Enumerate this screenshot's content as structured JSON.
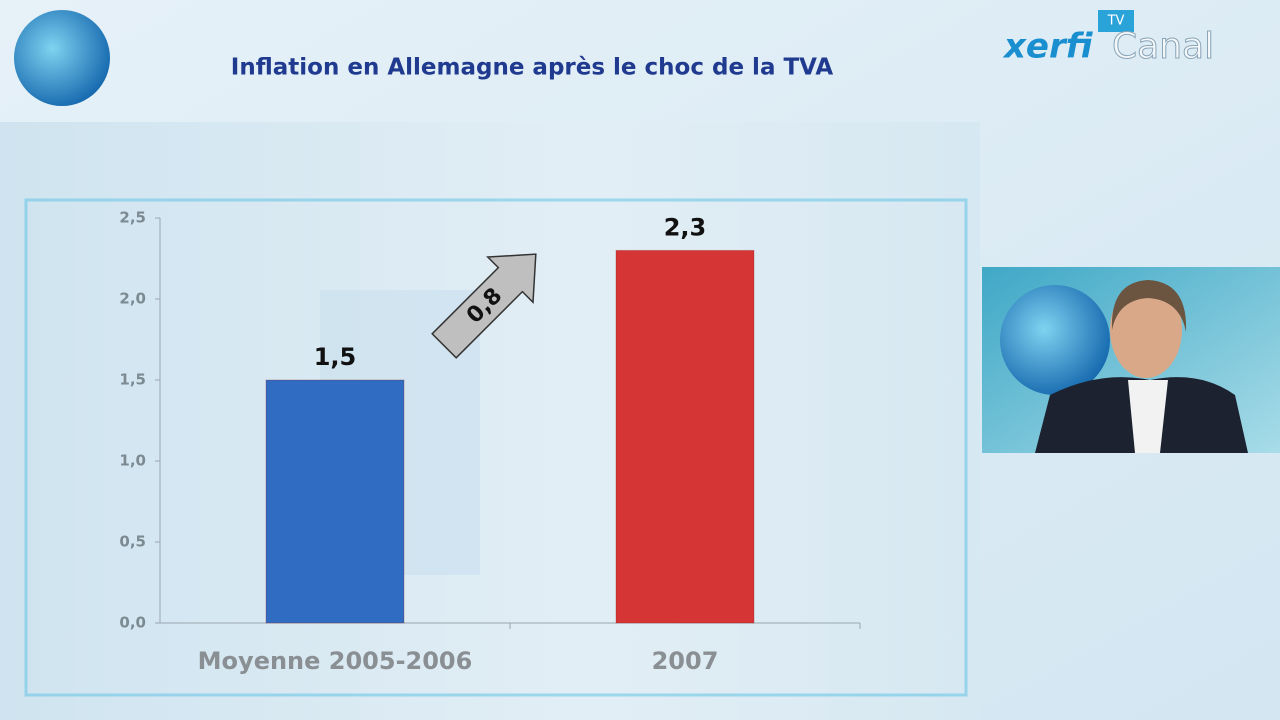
{
  "brand": {
    "name": "xerfi",
    "channel": "Canal",
    "tag": "TV"
  },
  "chart_data": {
    "type": "bar",
    "title": "Inflation en Allemagne après le choc de la TVA",
    "categories": [
      "Moyenne 2005-2006",
      "2007"
    ],
    "values": [
      1.5,
      2.3
    ],
    "value_labels": [
      "1,5",
      "2,3"
    ],
    "colors": [
      "#2f6cc2",
      "#d63535"
    ],
    "ylim": [
      0,
      2.5
    ],
    "yticks": [
      {
        "value": 0,
        "label": "0,0"
      },
      {
        "value": 0.5,
        "label": "0,5"
      },
      {
        "value": 1,
        "label": "1,0"
      },
      {
        "value": 1.5,
        "label": "1,5"
      },
      {
        "value": 2,
        "label": "2,0"
      },
      {
        "value": 2.5,
        "label": "2,5"
      }
    ],
    "annotations": [
      {
        "value": 0.8,
        "label": "0,8"
      }
    ]
  }
}
